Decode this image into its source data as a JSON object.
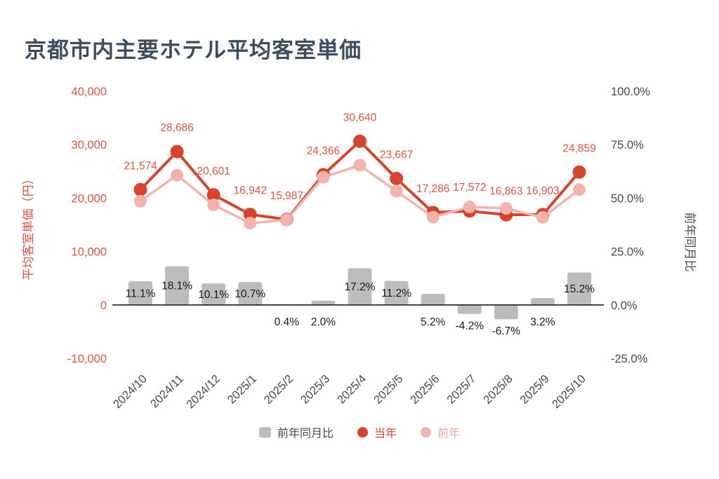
{
  "title": "京都市内主要ホテル平均客室単価",
  "colors": {
    "title": "#3b4e5e",
    "current_year": "#d7432d",
    "previous_year": "#f3b3ac",
    "yoy_bar": "#bcbcbc",
    "left_axis_text": "#e05341",
    "right_axis_text": "#3f4a55",
    "bar_label_text": "#1a1a1a",
    "zero_line": "#1e1e1e"
  },
  "chart_data": {
    "type": "combo",
    "grid": false,
    "legend_position": "bottom",
    "categories": [
      "2024/10",
      "2024/11",
      "2024/12",
      "2025/1",
      "2025/2",
      "2025/3",
      "2025/4",
      "2025/5",
      "2025/6",
      "2025/7",
      "2025/8",
      "2025/9",
      "2025/10"
    ],
    "left_axis": {
      "title": "平均客室単価（円）",
      "min": -10000,
      "max": 40000,
      "tick_values": [
        40000,
        30000,
        20000,
        10000,
        0,
        -10000
      ],
      "ticks": [
        "40,000",
        "30,000",
        "20,000",
        "10,000",
        "0",
        "-10,000"
      ],
      "color": "#e05341"
    },
    "right_axis": {
      "title": "前年同月比",
      "min": -25,
      "max": 100,
      "tick_values": [
        100,
        75,
        50,
        25,
        0,
        -25
      ],
      "ticks": [
        "100.0%",
        "75.0%",
        "50.0%",
        "25.0%",
        "0.0%",
        "-25.0%"
      ],
      "color": "#3f4a55"
    },
    "series": [
      {
        "name": "前年同月比",
        "type": "bar",
        "axis": "right",
        "color": "#bcbcbc",
        "values": [
          11.1,
          18.1,
          10.1,
          10.7,
          0.4,
          2.0,
          17.2,
          11.2,
          5.2,
          -4.2,
          -6.7,
          3.2,
          15.2
        ],
        "labels": [
          "11.1%",
          "18.1%",
          "10.1%",
          "10.7%",
          "0.4%",
          "2.0%",
          "17.2%",
          "11.2%",
          "5.2%",
          "-4.2%",
          "-6.7%",
          "3.2%",
          "15.2%"
        ]
      },
      {
        "name": "当年",
        "type": "line",
        "axis": "left",
        "color": "#d7432d",
        "values": [
          21574,
          28686,
          20601,
          16942,
          15987,
          24366,
          30640,
          23667,
          17286,
          17572,
          16863,
          16903,
          24859
        ],
        "labels": [
          "21,574",
          "28,686",
          "20,601",
          "16,942",
          "15,987",
          "24,366",
          "30,640",
          "23,667",
          "17,286",
          "17,572",
          "16,863",
          "16,903",
          "24,859"
        ]
      },
      {
        "name": "前年",
        "type": "line",
        "axis": "left",
        "color": "#f3b3ac",
        "values": [
          19418,
          24290,
          18711,
          15304,
          15923,
          23888,
          26143,
          21283,
          16432,
          18342,
          18074,
          16379,
          21579
        ]
      }
    ]
  },
  "legend": [
    {
      "id": "yoy",
      "label": "前年同月比",
      "marker": "square",
      "marker_color": "#bcbcbc",
      "text_color": "#3b4a59"
    },
    {
      "id": "current-year",
      "label": "当年",
      "marker": "circle",
      "marker_color": "#d7432d",
      "text_color": "#d7432d"
    },
    {
      "id": "previous-year",
      "label": "前年",
      "marker": "circle",
      "marker_color": "#f3b3ac",
      "text_color": "#efa79e"
    }
  ]
}
